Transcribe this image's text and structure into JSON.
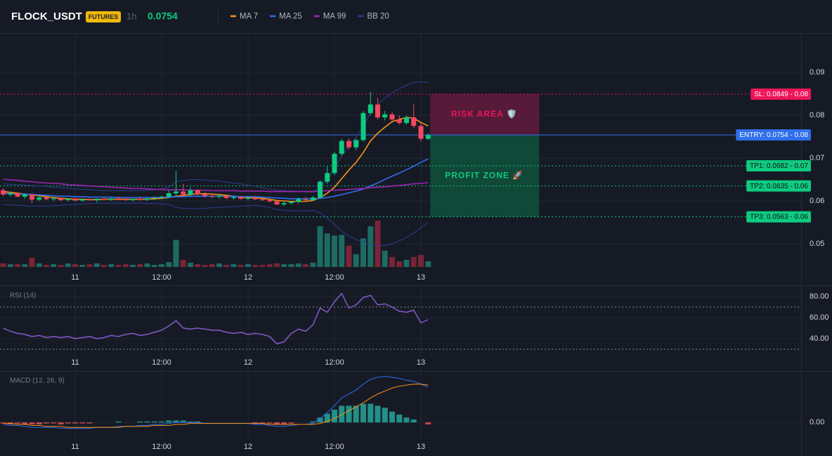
{
  "header": {
    "symbol": "FLOCK_USDT",
    "badge": "FUTURES",
    "interval": "1h",
    "price": 0.0754,
    "price_color": "#0ecb81"
  },
  "chart_data": [
    {
      "type": "candlestick",
      "categories": [
        null,
        null,
        null,
        null,
        null,
        null,
        null,
        null,
        null,
        null,
        "11",
        null,
        null,
        null,
        null,
        null,
        null,
        null,
        null,
        null,
        null,
        null,
        "12:00",
        null,
        null,
        null,
        null,
        null,
        null,
        null,
        null,
        null,
        null,
        null,
        "12",
        null,
        null,
        null,
        null,
        null,
        null,
        null,
        null,
        null,
        null,
        null,
        "12:00",
        null,
        null,
        null,
        null,
        null,
        null,
        null,
        null,
        null,
        null,
        null,
        "13",
        null
      ],
      "open": [
        0.0625,
        0.0615,
        0.0618,
        0.061,
        0.0615,
        0.0603,
        0.0608,
        0.0604,
        0.0606,
        0.0602,
        0.0605,
        0.0601,
        0.0604,
        0.0602,
        0.0605,
        0.0603,
        0.0606,
        0.0604,
        0.0602,
        0.0605,
        0.0603,
        0.0606,
        0.0608,
        0.061,
        0.0618,
        0.0622,
        0.0615,
        0.0625,
        0.0616,
        0.0612,
        0.061,
        0.0612,
        0.0607,
        0.0609,
        0.0605,
        0.0607,
        0.0604,
        0.0602,
        0.0599,
        0.0592,
        0.0595,
        0.0598,
        0.0604,
        0.0602,
        0.0608,
        0.0645,
        0.0665,
        0.071,
        0.074,
        0.0725,
        0.0742,
        0.0805,
        0.0825,
        0.0795,
        0.0802,
        0.079,
        0.0782,
        0.0795,
        0.0775,
        0.0745
      ],
      "high": [
        0.063,
        0.0622,
        0.062,
        0.0618,
        0.0617,
        0.0612,
        0.061,
        0.0609,
        0.0608,
        0.0607,
        0.0608,
        0.0606,
        0.0607,
        0.0606,
        0.0609,
        0.0607,
        0.061,
        0.0608,
        0.0606,
        0.0609,
        0.0607,
        0.061,
        0.0612,
        0.0625,
        0.067,
        0.064,
        0.0632,
        0.0628,
        0.062,
        0.0616,
        0.0614,
        0.0615,
        0.0612,
        0.0612,
        0.061,
        0.0611,
        0.0608,
        0.0605,
        0.0602,
        0.0598,
        0.06,
        0.0608,
        0.061,
        0.0612,
        0.0648,
        0.068,
        0.0715,
        0.0745,
        0.0746,
        0.0745,
        0.081,
        0.0855,
        0.084,
        0.081,
        0.0808,
        0.08,
        0.08,
        0.0825,
        0.0782,
        0.0758
      ],
      "low": [
        0.0612,
        0.061,
        0.0608,
        0.0605,
        0.0595,
        0.06,
        0.0601,
        0.06,
        0.06,
        0.0599,
        0.06,
        0.0598,
        0.06,
        0.0597,
        0.0601,
        0.06,
        0.0602,
        0.06,
        0.0599,
        0.0601,
        0.06,
        0.0602,
        0.0604,
        0.0607,
        0.0612,
        0.061,
        0.061,
        0.0612,
        0.0608,
        0.0606,
        0.0605,
        0.0604,
        0.0603,
        0.0603,
        0.0601,
        0.0602,
        0.06,
        0.0597,
        0.059,
        0.0588,
        0.0592,
        0.0594,
        0.06,
        0.06,
        0.0606,
        0.064,
        0.066,
        0.0705,
        0.072,
        0.0718,
        0.0738,
        0.08,
        0.079,
        0.0788,
        0.0785,
        0.0778,
        0.0778,
        0.077,
        0.0738,
        0.0742
      ],
      "close": [
        0.0615,
        0.0618,
        0.061,
        0.0615,
        0.0603,
        0.0608,
        0.0604,
        0.0606,
        0.0602,
        0.0605,
        0.0601,
        0.0604,
        0.0602,
        0.0605,
        0.0603,
        0.0606,
        0.0604,
        0.0602,
        0.0605,
        0.0603,
        0.0606,
        0.0608,
        0.061,
        0.0618,
        0.0622,
        0.0615,
        0.0625,
        0.0616,
        0.0612,
        0.061,
        0.0612,
        0.0607,
        0.0609,
        0.0605,
        0.0607,
        0.0604,
        0.0602,
        0.0599,
        0.0592,
        0.0595,
        0.0598,
        0.0604,
        0.0602,
        0.0608,
        0.0645,
        0.0665,
        0.071,
        0.074,
        0.0725,
        0.0742,
        0.0805,
        0.0825,
        0.0795,
        0.0802,
        0.079,
        0.0782,
        0.0795,
        0.0775,
        0.0745,
        0.0754
      ],
      "volume": [
        5,
        4,
        4,
        4,
        13,
        5,
        3,
        4,
        3,
        5,
        4,
        3,
        4,
        5,
        3,
        4,
        3,
        4,
        3,
        4,
        5,
        3,
        4,
        7,
        38,
        10,
        6,
        4,
        3,
        4,
        5,
        3,
        4,
        3,
        4,
        3,
        3,
        4,
        5,
        4,
        4,
        5,
        4,
        6,
        57,
        47,
        44,
        45,
        30,
        18,
        40,
        57,
        65,
        23,
        14,
        8,
        10,
        14,
        17,
        8
      ],
      "up_color": "#0ecb81",
      "down_color": "#f6465d",
      "up_volume_color": "#1d6b63",
      "down_volume_color": "#7a2438",
      "series": [
        {
          "name": "MA 7",
          "color": "#f7931a",
          "values": [
            0.0622,
            0.062,
            0.0618,
            0.0616,
            0.0614,
            0.0612,
            0.061,
            0.0608,
            0.0606,
            0.0605,
            0.0604,
            0.0604,
            0.0603,
            0.0603,
            0.0604,
            0.0604,
            0.0604,
            0.0604,
            0.0604,
            0.0604,
            0.0604,
            0.0605,
            0.0606,
            0.0608,
            0.0611,
            0.0613,
            0.0615,
            0.0617,
            0.0617,
            0.0616,
            0.0615,
            0.0613,
            0.0611,
            0.0609,
            0.0608,
            0.0607,
            0.0606,
            0.0604,
            0.0601,
            0.06,
            0.0599,
            0.0599,
            0.0599,
            0.0601,
            0.0608,
            0.0618,
            0.0632,
            0.0652,
            0.0672,
            0.069,
            0.0713,
            0.074,
            0.0758,
            0.0772,
            0.0785,
            0.079,
            0.0795,
            0.0793,
            0.0783,
            0.0775
          ]
        },
        {
          "name": "MA 25",
          "color": "#2f6fed",
          "values": [
            0.0618,
            0.0617,
            0.0616,
            0.0616,
            0.0615,
            0.0614,
            0.0613,
            0.0612,
            0.0611,
            0.0611,
            0.061,
            0.061,
            0.0609,
            0.0609,
            0.0609,
            0.0609,
            0.0608,
            0.0608,
            0.0608,
            0.0608,
            0.0608,
            0.0608,
            0.0608,
            0.0609,
            0.061,
            0.061,
            0.0611,
            0.0611,
            0.0611,
            0.0611,
            0.0611,
            0.0611,
            0.0611,
            0.061,
            0.061,
            0.061,
            0.0609,
            0.0608,
            0.0607,
            0.0606,
            0.0605,
            0.0605,
            0.0605,
            0.0605,
            0.0606,
            0.0608,
            0.0611,
            0.0615,
            0.0619,
            0.0623,
            0.0628,
            0.0635,
            0.0642,
            0.065,
            0.0658,
            0.0665,
            0.0673,
            0.0681,
            0.069,
            0.0698
          ]
        },
        {
          "name": "MA 99",
          "color": "#9c27b0",
          "values": [
            0.0651,
            0.0649,
            0.0648,
            0.0646,
            0.0645,
            0.0643,
            0.0642,
            0.0641,
            0.064,
            0.0638,
            0.0637,
            0.0636,
            0.0635,
            0.0634,
            0.0633,
            0.0632,
            0.0631,
            0.063,
            0.0629,
            0.0629,
            0.0628,
            0.0627,
            0.0627,
            0.0626,
            0.0626,
            0.0626,
            0.0625,
            0.0625,
            0.0625,
            0.0624,
            0.0624,
            0.0624,
            0.0624,
            0.0623,
            0.0623,
            0.0623,
            0.0623,
            0.0622,
            0.0622,
            0.0622,
            0.0622,
            0.0622,
            0.0622,
            0.0622,
            0.0623,
            0.0624,
            0.0625,
            0.0626,
            0.0627,
            0.0628,
            0.0629,
            0.0631,
            0.0632,
            0.0633,
            0.0635,
            0.0636,
            0.0638,
            0.064,
            0.0641,
            0.0643
          ]
        }
      ],
      "bands": [
        {
          "name": "BB 20",
          "color": "#2b3f8f",
          "upper": [
            0.064,
            0.0639,
            0.0638,
            0.0637,
            0.0636,
            0.0635,
            0.0634,
            0.0632,
            0.0631,
            0.063,
            0.0628,
            0.0627,
            0.0626,
            0.0625,
            0.0624,
            0.0624,
            0.0624,
            0.0624,
            0.0624,
            0.0624,
            0.0625,
            0.0626,
            0.0628,
            0.0632,
            0.0645,
            0.0648,
            0.065,
            0.065,
            0.0649,
            0.0648,
            0.0646,
            0.0644,
            0.0642,
            0.064,
            0.0637,
            0.0634,
            0.0631,
            0.0628,
            0.0625,
            0.0624,
            0.0623,
            0.0622,
            0.0621,
            0.0621,
            0.0632,
            0.065,
            0.0675,
            0.0705,
            0.0728,
            0.0748,
            0.0775,
            0.0805,
            0.0825,
            0.084,
            0.0852,
            0.0862,
            0.087,
            0.0876,
            0.0878,
            0.0876
          ],
          "lower": [
            0.0592,
            0.0591,
            0.059,
            0.0589,
            0.0588,
            0.0588,
            0.0588,
            0.0589,
            0.059,
            0.0591,
            0.0592,
            0.0593,
            0.0594,
            0.0595,
            0.0595,
            0.0595,
            0.0595,
            0.0595,
            0.0595,
            0.0595,
            0.0594,
            0.0594,
            0.0593,
            0.0592,
            0.0585,
            0.0583,
            0.0582,
            0.0582,
            0.0583,
            0.0584,
            0.0585,
            0.0586,
            0.0587,
            0.0588,
            0.0589,
            0.059,
            0.0588,
            0.0585,
            0.058,
            0.0578,
            0.0577,
            0.0577,
            0.0577,
            0.0578,
            0.0572,
            0.056,
            0.0545,
            0.053,
            0.0518,
            0.051,
            0.0505,
            0.0498,
            0.0495,
            0.0496,
            0.05,
            0.0507,
            0.0515,
            0.0525,
            0.0538,
            0.055
          ]
        }
      ],
      "zones": [
        {
          "label": "RISK AREA 🛡️",
          "from": 0.0849,
          "to": 0.0754,
          "color": "#6e1b40",
          "label_color": "#f0145a"
        },
        {
          "label": "PROFIT ZONE 🚀",
          "from": 0.0754,
          "to": 0.0563,
          "color": "#0f5a3e",
          "label_color": "#0ecb81"
        }
      ],
      "levels": [
        {
          "label": "SL: 0.0849 - 0.08",
          "value": 0.0849,
          "color": "#f0145a",
          "text_color": "#ffffff",
          "style": "dotted"
        },
        {
          "label": "ENTRY: 0.0754 - 0.08",
          "value": 0.0754,
          "color": "#2f6fed",
          "text_color": "#ffffff",
          "style": "solid"
        },
        {
          "label": "TP1: 0.0682 - 0.07",
          "value": 0.0682,
          "color": "#0ecb81",
          "text_color": "#0b0e11",
          "style": "dotted"
        },
        {
          "label": "TP2: 0.0635 - 0.06",
          "value": 0.0635,
          "color": "#0ecb81",
          "text_color": "#0b0e11",
          "style": "dotted"
        },
        {
          "label": "TP3: 0.0563 - 0.06",
          "value": 0.0563,
          "color": "#0ecb81",
          "text_color": "#0b0e11",
          "style": "dotted"
        }
      ],
      "ylim": [
        0.0446,
        0.099
      ],
      "yticks": [
        0.05,
        0.06,
        0.07,
        0.08,
        0.09
      ],
      "grid": true
    },
    {
      "type": "line",
      "title": "RSI (14)",
      "color": "#7e57c2",
      "values": [
        50,
        47,
        45,
        44,
        42,
        43,
        41,
        42,
        41,
        42,
        40,
        41,
        42,
        40,
        41,
        43,
        42,
        44,
        45,
        43,
        44,
        46,
        48,
        52,
        57,
        50,
        49,
        50,
        49,
        48,
        48,
        46,
        45,
        46,
        44,
        45,
        44,
        42,
        35,
        37,
        45,
        49,
        47,
        53,
        69,
        65,
        75,
        83,
        69,
        72,
        79,
        81,
        72,
        73,
        70,
        66,
        65,
        67,
        55,
        58
      ],
      "hlines": [
        70,
        30
      ],
      "ylim": [
        9.3,
        89.3
      ],
      "yticks": [
        {
          "value": 40,
          "label": "40.00"
        },
        {
          "value": 60,
          "label": "60.00"
        },
        {
          "value": 80,
          "label": "80.00"
        }
      ],
      "grid": true
    },
    {
      "type": "macd",
      "title": "MACD (12, 26, 9)",
      "series": [
        {
          "color": "#2f6fed",
          "values": [
            -0.0002,
            -0.0003,
            -0.0003,
            -0.0004,
            -0.0005,
            -0.0005,
            -0.0005,
            -0.0005,
            -0.0006,
            -0.0006,
            -0.0006,
            -0.0006,
            -0.0006,
            -0.0005,
            -0.0005,
            -0.0005,
            -0.0004,
            -0.0004,
            -0.0004,
            -0.0003,
            -0.0003,
            -0.0002,
            -0.0002,
            -0.0001,
            0,
            0,
            0,
            0,
            -0.0001,
            -0.0001,
            -0.0001,
            -0.0001,
            -0.0001,
            -0.0001,
            -0.0001,
            -0.0002,
            -0.0002,
            -0.0003,
            -0.0004,
            -0.0004,
            -0.0003,
            -0.0002,
            -0.0002,
            -0.0001,
            0.0004,
            0.001,
            0.0017,
            0.0025,
            0.0029,
            0.0033,
            0.0039,
            0.0044,
            0.0046,
            0.0047,
            0.0046,
            0.0045,
            0.0043,
            0.0042,
            0.0039,
            0.0036
          ]
        },
        {
          "color": "#f7931a",
          "values": [
            -0.0001,
            -0.0001,
            -0.0002,
            -0.0002,
            -0.0003,
            -0.0003,
            -0.0004,
            -0.0004,
            -0.0004,
            -0.0005,
            -0.0005,
            -0.0005,
            -0.0005,
            -0.0005,
            -0.0005,
            -0.0005,
            -0.0005,
            -0.0004,
            -0.0004,
            -0.0004,
            -0.0004,
            -0.0003,
            -0.0003,
            -0.0003,
            -0.0002,
            -0.0002,
            -0.0001,
            -0.0001,
            -0.0001,
            -0.0001,
            -0.0001,
            -0.0001,
            -0.0001,
            -0.0001,
            -0.0001,
            -0.0001,
            -0.0001,
            -0.0002,
            -0.0002,
            -0.0002,
            -0.0002,
            -0.0002,
            -0.0002,
            -0.0002,
            -0.0001,
            0.0001,
            0.0004,
            0.0008,
            0.0012,
            0.0016,
            0.002,
            0.0025,
            0.0029,
            0.0032,
            0.0035,
            0.0037,
            0.0038,
            0.0039,
            0.0039,
            0.0038
          ]
        }
      ],
      "histogram": [
        -0.0001,
        -0.0002,
        -0.0001,
        -0.0002,
        -0.0002,
        -0.0002,
        -0.0001,
        -0.0001,
        -0.0002,
        -0.0001,
        -0.0001,
        -0.0001,
        -0.0001,
        0,
        0,
        0,
        0.0001,
        0,
        0,
        0.0001,
        0.0001,
        0.0001,
        0.0001,
        0.0002,
        0.0002,
        0.0002,
        0.0001,
        0.0001,
        0,
        0,
        0,
        0,
        0,
        0,
        0,
        -0.0001,
        -0.0001,
        -0.0001,
        -0.0002,
        -0.0002,
        -0.0001,
        0,
        0,
        0.0001,
        0.0005,
        0.0009,
        0.0013,
        0.0017,
        0.0017,
        0.0017,
        0.0019,
        0.0019,
        0.0017,
        0.0015,
        0.0011,
        0.0008,
        0.0005,
        0.0003,
        0,
        -0.0002
      ],
      "up_color": "#26a69a",
      "down_color": "#ef5350",
      "ylim": [
        -0.0017,
        0.0051
      ],
      "yticks": [
        {
          "value": 0,
          "label": "0.00"
        }
      ],
      "grid": true
    }
  ]
}
